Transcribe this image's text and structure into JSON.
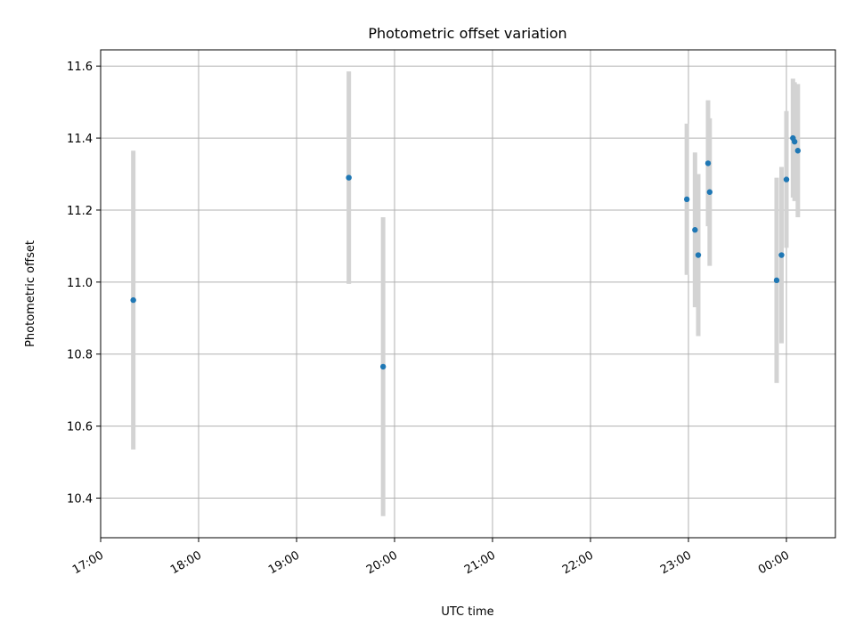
{
  "chart_data": {
    "type": "scatter",
    "title": "Photometric offset variation",
    "xlabel": "UTC time",
    "ylabel": "Photometric offset",
    "x_ticks": [
      "17:00",
      "18:00",
      "19:00",
      "20:00",
      "21:00",
      "22:00",
      "23:00",
      "00:00"
    ],
    "y_ticks": [
      "10.4",
      "10.6",
      "10.8",
      "11.0",
      "11.2",
      "11.4",
      "11.6"
    ],
    "xlim": [
      "17:00",
      "00:30"
    ],
    "ylim": [
      10.29,
      11.645
    ],
    "grid": true,
    "colors": {
      "point": "#1f77b4",
      "errorbar": "#d3d3d3",
      "grid": "#b0b0b0"
    },
    "points": [
      {
        "x": "17:20",
        "y": 10.95,
        "err": 0.415
      },
      {
        "x": "19:32",
        "y": 11.29,
        "err": 0.295
      },
      {
        "x": "19:53",
        "y": 10.765,
        "err": 0.415
      },
      {
        "x": "22:59",
        "y": 11.23,
        "err": 0.21
      },
      {
        "x": "23:04",
        "y": 11.145,
        "err": 0.215
      },
      {
        "x": "23:06",
        "y": 11.075,
        "err": 0.225
      },
      {
        "x": "23:12",
        "y": 11.33,
        "err": 0.175
      },
      {
        "x": "23:13",
        "y": 11.25,
        "err": 0.205
      },
      {
        "x": "23:54",
        "y": 11.005,
        "err": 0.285
      },
      {
        "x": "23:57",
        "y": 11.075,
        "err": 0.245
      },
      {
        "x": "00:00",
        "y": 11.285,
        "err": 0.19
      },
      {
        "x": "00:04",
        "y": 11.4,
        "err": 0.165
      },
      {
        "x": "00:05",
        "y": 11.39,
        "err": 0.165
      },
      {
        "x": "00:07",
        "y": 11.365,
        "err": 0.185
      }
    ]
  }
}
